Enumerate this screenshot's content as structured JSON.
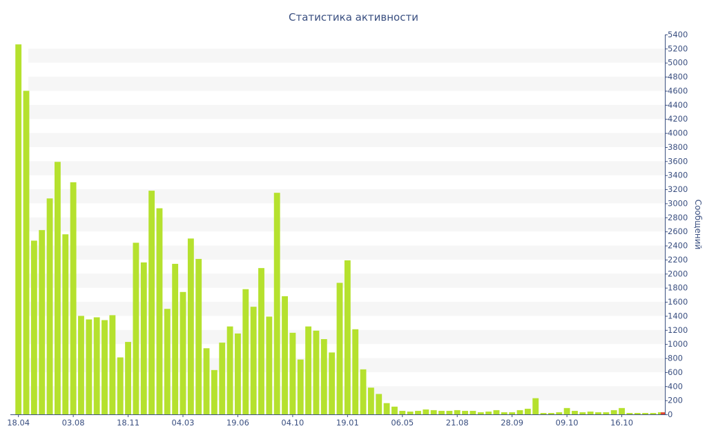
{
  "chart_data": {
    "type": "bar",
    "title": "Статистика активности",
    "xlabel": "",
    "ylabel": "Сообщений",
    "ylim": [
      0,
      5400
    ],
    "ytick_step": 200,
    "grid": "horizontal bands",
    "colors": {
      "bar": "#b5e12e",
      "band": "#f6f6f6",
      "axis": "#3a4f80",
      "text": "#3a4f80",
      "last_bar": "#e24a33"
    },
    "x_tick_labels": [
      {
        "label": "18.04",
        "index": 0
      },
      {
        "label": "03.08",
        "index": 7
      },
      {
        "label": "18.11",
        "index": 14
      },
      {
        "label": "04.03",
        "index": 21
      },
      {
        "label": "19.06",
        "index": 28
      },
      {
        "label": "04.10",
        "index": 35
      },
      {
        "label": "19.01",
        "index": 42
      },
      {
        "label": "06.05",
        "index": 49
      },
      {
        "label": "21.08",
        "index": 56
      },
      {
        "label": "28.09",
        "index": 63
      },
      {
        "label": "09.10",
        "index": 70
      },
      {
        "label": "16.10",
        "index": 77
      }
    ],
    "values": [
      5260,
      4600,
      2470,
      2620,
      3070,
      3590,
      2560,
      3300,
      1400,
      1350,
      1380,
      1340,
      1410,
      810,
      1030,
      2440,
      2160,
      3180,
      2930,
      1500,
      2140,
      1740,
      2500,
      2210,
      940,
      630,
      1020,
      1250,
      1150,
      1780,
      1530,
      2080,
      1390,
      3150,
      1680,
      1160,
      780,
      1250,
      1190,
      1070,
      880,
      1870,
      2190,
      1210,
      640,
      380,
      290,
      160,
      110,
      50,
      40,
      50,
      70,
      60,
      50,
      50,
      60,
      50,
      50,
      30,
      40,
      60,
      30,
      30,
      60,
      80,
      230,
      20,
      20,
      30,
      90,
      50,
      30,
      40,
      30,
      30,
      60,
      90,
      20,
      20,
      20,
      20,
      30
    ]
  }
}
